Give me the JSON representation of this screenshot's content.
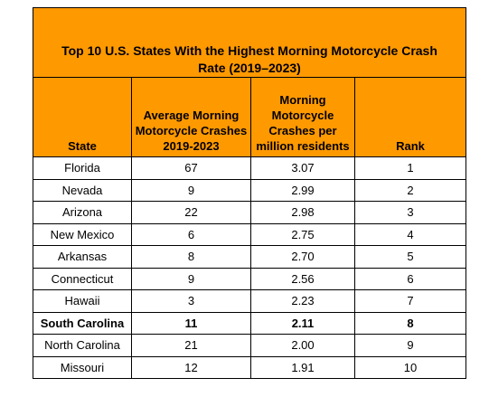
{
  "table": {
    "title": "Top 10 U.S. States With the Highest Morning Motorcycle Crash Rate (2019–2023)",
    "columns": [
      "State",
      "Average Morning Motorcycle Crashes 2019-2023",
      "Morning Motorcycle Crashes per million residents",
      "Rank"
    ],
    "rows": [
      [
        "Florida",
        "67",
        "3.07",
        "1"
      ],
      [
        "Nevada",
        "9",
        "2.99",
        "2"
      ],
      [
        "Arizona",
        "22",
        "2.98",
        "3"
      ],
      [
        "New Mexico",
        "6",
        "2.75",
        "4"
      ],
      [
        "Arkansas",
        "8",
        "2.70",
        "5"
      ],
      [
        "Connecticut",
        "9",
        "2.56",
        "6"
      ],
      [
        "Hawaii",
        "3",
        "2.23",
        "7"
      ],
      [
        "South Carolina",
        "11",
        "2.11",
        "8"
      ],
      [
        "North Carolina",
        "21",
        "2.00",
        "9"
      ],
      [
        "Missouri",
        "12",
        "1.91",
        "10"
      ]
    ]
  }
}
